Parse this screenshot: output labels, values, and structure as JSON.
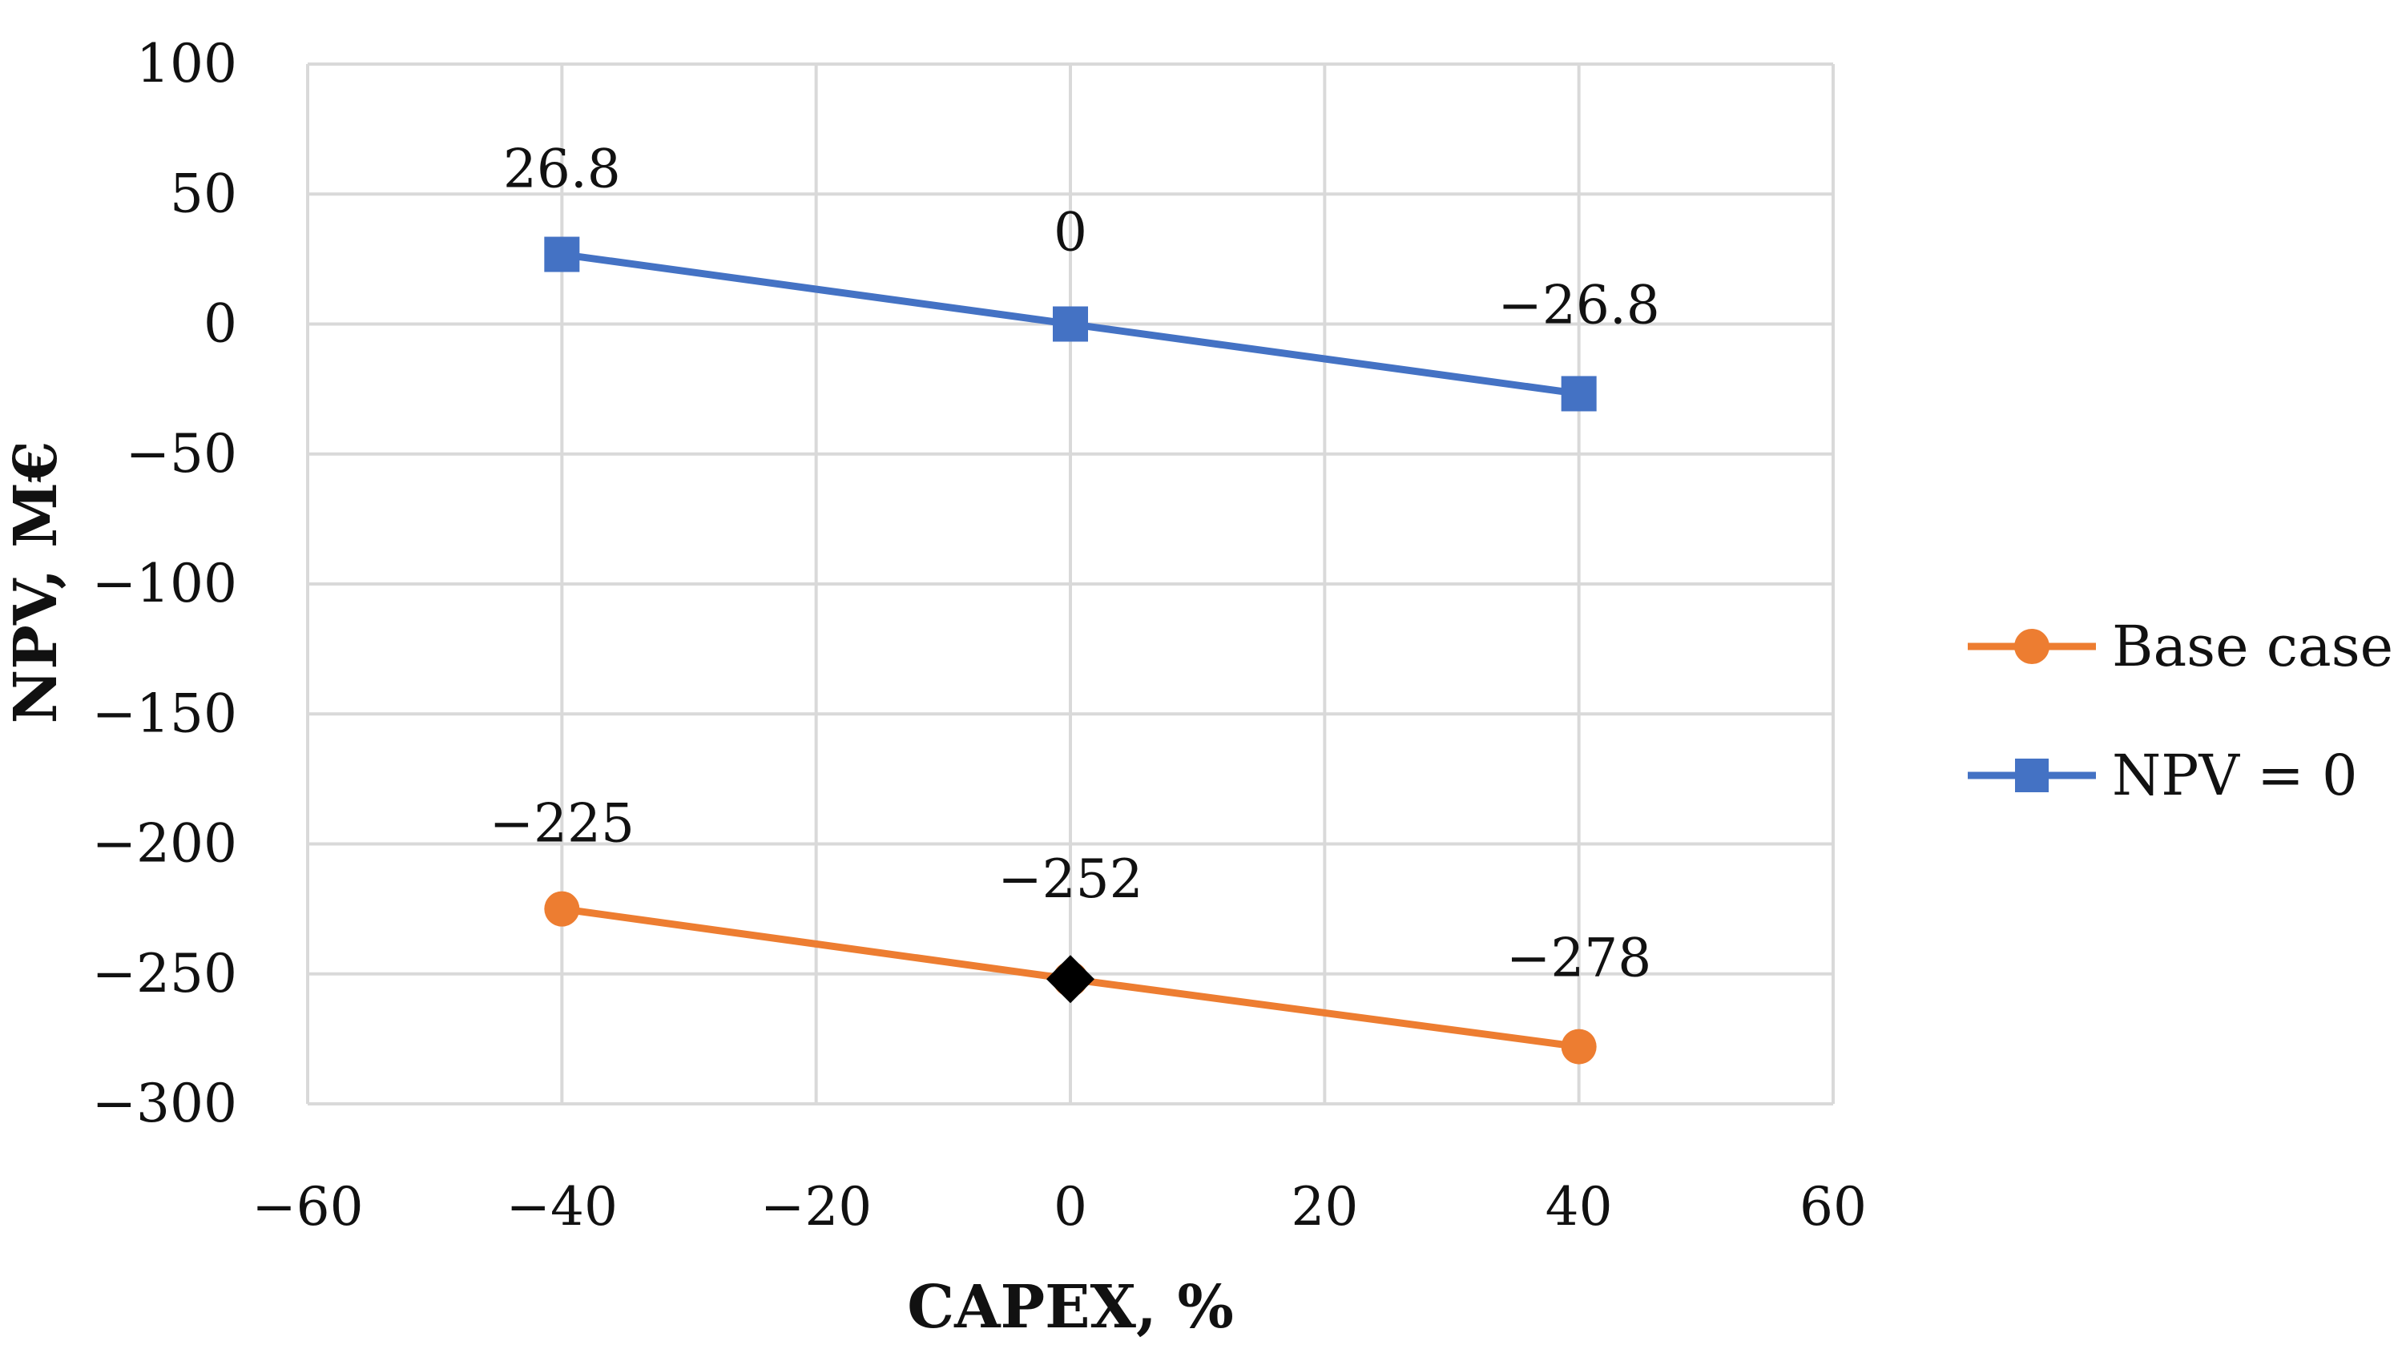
{
  "chart_data": {
    "type": "line",
    "title": "",
    "xlabel": "CAPEX, %",
    "ylabel": "NPV, M€",
    "xlim": [
      -60,
      60
    ],
    "ylim": [
      -300,
      100
    ],
    "x_ticks": [
      -60,
      -40,
      -20,
      0,
      20,
      40,
      60
    ],
    "y_ticks": [
      100,
      50,
      0,
      -50,
      -100,
      -150,
      -200,
      -250,
      -300
    ],
    "x_tick_labels": [
      "−60",
      "−40",
      "−20",
      "0",
      "20",
      "40",
      "60"
    ],
    "y_tick_labels": [
      "100",
      "50",
      "0",
      "−50",
      "−100",
      "−150",
      "−200",
      "−250",
      "−300"
    ],
    "grid": true,
    "legend_position": "right",
    "series": [
      {
        "name": "Base case",
        "color": "#ED7D31",
        "marker": "circle",
        "x": [
          -40,
          0,
          40
        ],
        "values": [
          -225,
          -252,
          -278
        ],
        "data_labels": [
          "−225",
          "−252",
          "−278"
        ]
      },
      {
        "name": "NPV = 0",
        "color": "#4472C4",
        "marker": "square",
        "x": [
          -40,
          0,
          40
        ],
        "values": [
          26.8,
          0,
          -26.8
        ],
        "data_labels": [
          "26.8",
          "0",
          "−26.8"
        ]
      }
    ],
    "highlight_point": {
      "x": 0,
      "y": -252,
      "marker": "diamond",
      "color": "#000000"
    }
  }
}
